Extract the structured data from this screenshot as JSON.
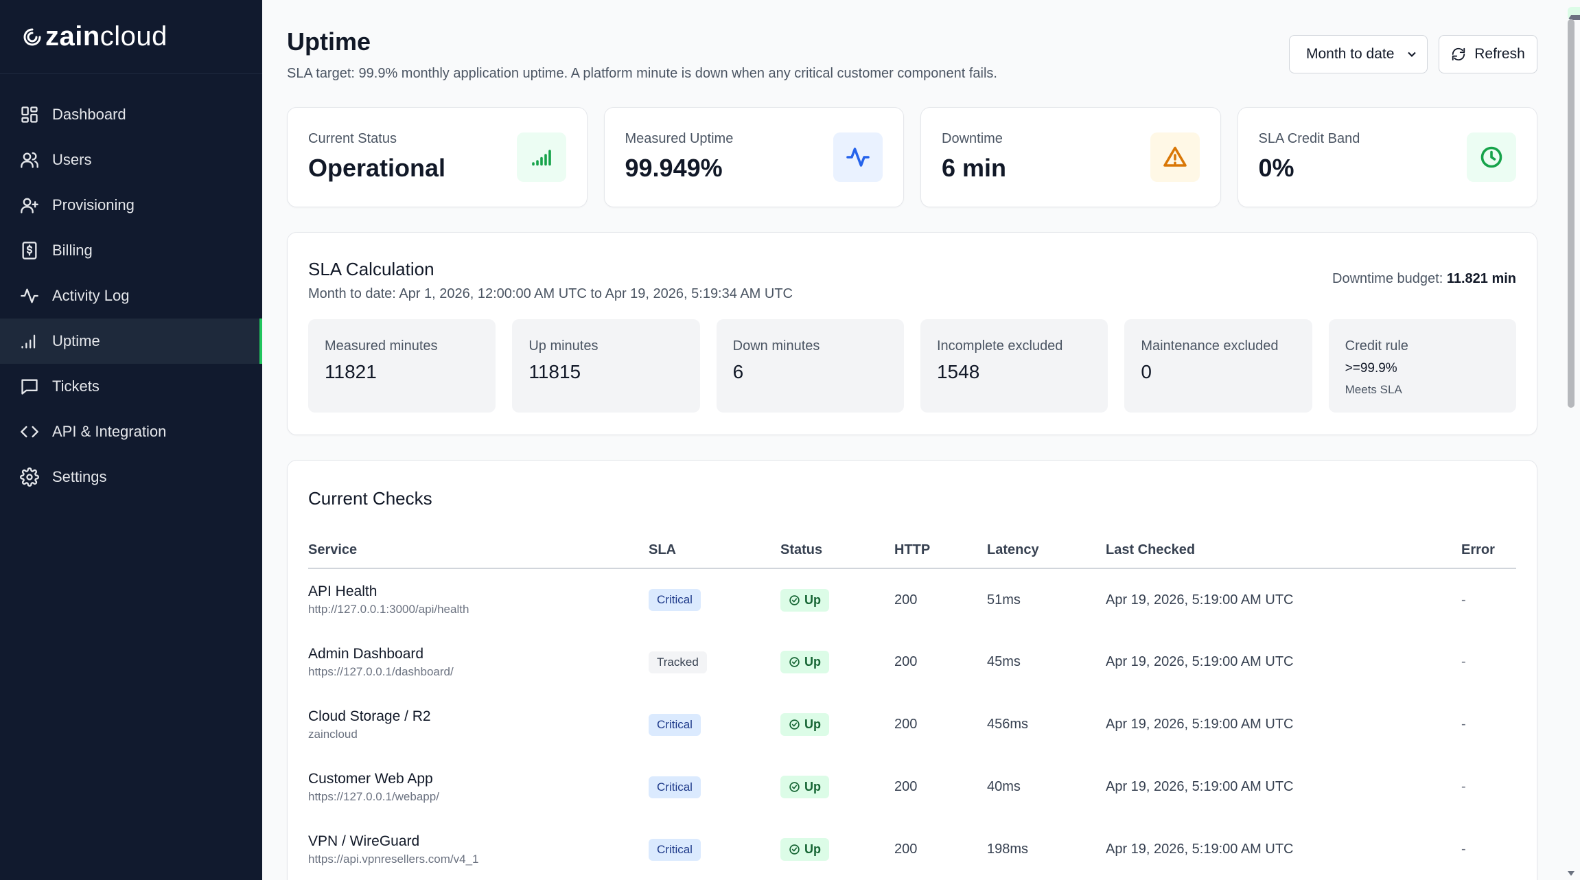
{
  "brand": {
    "bold": "zain",
    "light": "cloud"
  },
  "sidebar": {
    "items": [
      {
        "label": "Dashboard",
        "icon": "dashboard-icon"
      },
      {
        "label": "Users",
        "icon": "users-icon"
      },
      {
        "label": "Provisioning",
        "icon": "user-plus-icon"
      },
      {
        "label": "Billing",
        "icon": "billing-icon"
      },
      {
        "label": "Activity Log",
        "icon": "activity-icon"
      },
      {
        "label": "Uptime",
        "icon": "signal-icon",
        "active": true
      },
      {
        "label": "Tickets",
        "icon": "message-icon"
      },
      {
        "label": "API & Integration",
        "icon": "code-icon"
      },
      {
        "label": "Settings",
        "icon": "gear-icon"
      }
    ]
  },
  "header": {
    "title": "Uptime",
    "subtitle": "SLA target: 99.9% monthly application uptime. A platform minute is down when any critical customer component fails.",
    "period_select": "Month to date",
    "refresh_label": "Refresh"
  },
  "stats": [
    {
      "label": "Current Status",
      "value": "Operational",
      "icon": "signal-icon",
      "color": "#16a34a",
      "bg": "#ecfdf3"
    },
    {
      "label": "Measured Uptime",
      "value": "99.949%",
      "icon": "activity-icon",
      "color": "#2563eb",
      "bg": "#eaf2ff"
    },
    {
      "label": "Downtime",
      "value": "6 min",
      "icon": "warning-icon",
      "color": "#d97706",
      "bg": "#fff8e6"
    },
    {
      "label": "SLA Credit Band",
      "value": "0%",
      "icon": "clock-icon",
      "color": "#16a34a",
      "bg": "#ecfdf3"
    }
  ],
  "sla": {
    "title": "SLA Calculation",
    "period": "Month to date: Apr 1, 2026, 12:00:00 AM UTC to Apr 19, 2026, 5:19:34 AM UTC",
    "budget_label": "Downtime budget:",
    "budget_value": "11.821 min",
    "metrics": [
      {
        "label": "Measured minutes",
        "value": "11821"
      },
      {
        "label": "Up minutes",
        "value": "11815"
      },
      {
        "label": "Down minutes",
        "value": "6"
      },
      {
        "label": "Incomplete excluded",
        "value": "1548"
      },
      {
        "label": "Maintenance excluded",
        "value": "0"
      }
    ],
    "credit_rule": {
      "label": "Credit rule",
      "value": ">=99.9%",
      "note": "Meets SLA"
    }
  },
  "checks": {
    "title": "Current Checks",
    "columns": [
      "Service",
      "SLA",
      "Status",
      "HTTP",
      "Latency",
      "Last Checked",
      "Error"
    ],
    "rows": [
      {
        "name": "API Health",
        "url": "http://127.0.0.1:3000/api/health",
        "sla": "Critical",
        "status": "Up",
        "http": "200",
        "latency": "51ms",
        "checked": "Apr 19, 2026, 5:19:00 AM UTC",
        "error": "-"
      },
      {
        "name": "Admin Dashboard",
        "url": "https://127.0.0.1/dashboard/",
        "sla": "Tracked",
        "status": "Up",
        "http": "200",
        "latency": "45ms",
        "checked": "Apr 19, 2026, 5:19:00 AM UTC",
        "error": "-"
      },
      {
        "name": "Cloud Storage / R2",
        "url": "zaincloud",
        "sla": "Critical",
        "status": "Up",
        "http": "200",
        "latency": "456ms",
        "checked": "Apr 19, 2026, 5:19:00 AM UTC",
        "error": "-"
      },
      {
        "name": "Customer Web App",
        "url": "https://127.0.0.1/webapp/",
        "sla": "Critical",
        "status": "Up",
        "http": "200",
        "latency": "40ms",
        "checked": "Apr 19, 2026, 5:19:00 AM UTC",
        "error": "-"
      },
      {
        "name": "VPN / WireGuard",
        "url": "https://api.vpnresellers.com/v4_1",
        "sla": "Critical",
        "status": "Up",
        "http": "200",
        "latency": "198ms",
        "checked": "Apr 19, 2026, 5:19:00 AM UTC",
        "error": "-"
      }
    ]
  }
}
